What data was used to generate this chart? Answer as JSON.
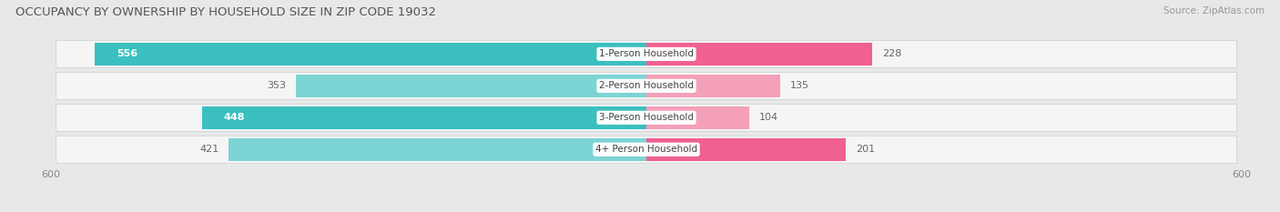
{
  "title": "OCCUPANCY BY OWNERSHIP BY HOUSEHOLD SIZE IN ZIP CODE 19032",
  "source": "Source: ZipAtlas.com",
  "categories": [
    "1-Person Household",
    "2-Person Household",
    "3-Person Household",
    "4+ Person Household"
  ],
  "owner_values": [
    556,
    353,
    448,
    421
  ],
  "renter_values": [
    228,
    135,
    104,
    201
  ],
  "owner_color_strong": "#3BBFBF",
  "owner_color_light": "#7DD4D4",
  "renter_color_strong": "#F06090",
  "renter_color_light": "#F4A0B8",
  "background_color": "#e8e8e8",
  "row_background_color": "#f5f5f5",
  "xlim_left": -600,
  "xlim_right": 600,
  "xtick_left": -600,
  "xtick_right": 600,
  "title_fontsize": 9.5,
  "source_fontsize": 7.5,
  "tick_fontsize": 8,
  "label_fontsize": 8,
  "category_fontsize": 7.5
}
